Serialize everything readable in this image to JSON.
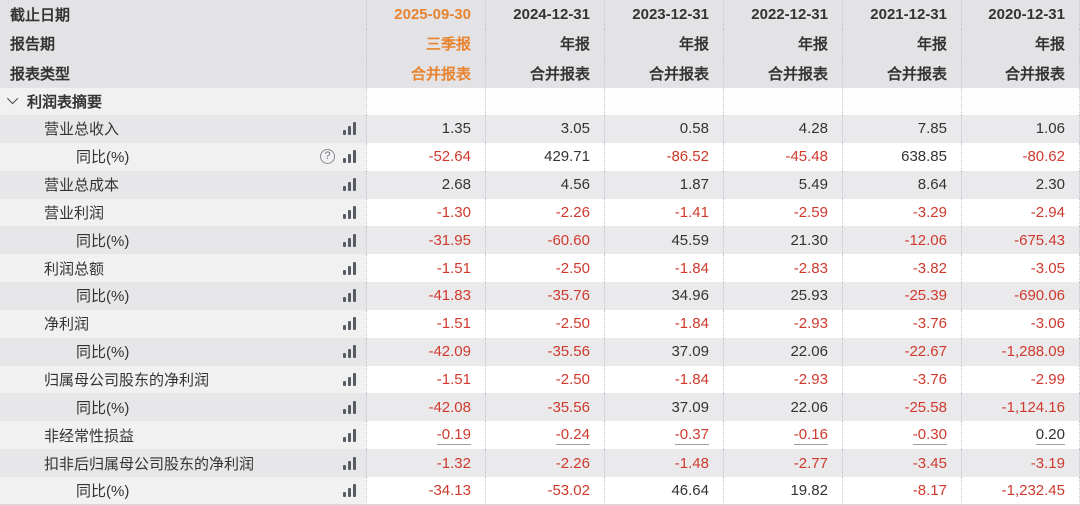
{
  "colors": {
    "accent_orange": "#e8832f",
    "negative_red": "#cf3a2d",
    "text_dark": "#333333",
    "header_bg": "#e3e3e5",
    "row_gray_bg": "#eaeaec",
    "label_light_bg": "#f1f1f2"
  },
  "icons": {
    "chevron_down": "chevron-down",
    "help": "?",
    "bar_chart": "mini-bar-chart"
  },
  "header": {
    "row_labels": [
      "截止日期",
      "报告期",
      "报表类型"
    ],
    "columns": [
      {
        "date": "2025-09-30",
        "period": "三季报",
        "report_type": "合并报表",
        "selected": true
      },
      {
        "date": "2024-12-31",
        "period": "年报",
        "report_type": "合并报表",
        "selected": false
      },
      {
        "date": "2023-12-31",
        "period": "年报",
        "report_type": "合并报表",
        "selected": false
      },
      {
        "date": "2022-12-31",
        "period": "年报",
        "report_type": "合并报表",
        "selected": false
      },
      {
        "date": "2021-12-31",
        "period": "年报",
        "report_type": "合并报表",
        "selected": false
      },
      {
        "date": "2020-12-31",
        "period": "年报",
        "report_type": "合并报表",
        "selected": false
      }
    ]
  },
  "section": {
    "title": "利润表摘要",
    "expanded": true
  },
  "rows": [
    {
      "label": "营业总收入",
      "indent": 1,
      "help": false,
      "underline": false,
      "values": [
        "1.35",
        "3.05",
        "0.58",
        "4.28",
        "7.85",
        "1.06"
      ]
    },
    {
      "label": "同比(%)",
      "indent": 2,
      "help": true,
      "underline": false,
      "values": [
        "-52.64",
        "429.71",
        "-86.52",
        "-45.48",
        "638.85",
        "-80.62"
      ]
    },
    {
      "label": "营业总成本",
      "indent": 1,
      "help": false,
      "underline": false,
      "values": [
        "2.68",
        "4.56",
        "1.87",
        "5.49",
        "8.64",
        "2.30"
      ]
    },
    {
      "label": "营业利润",
      "indent": 1,
      "help": false,
      "underline": false,
      "values": [
        "-1.30",
        "-2.26",
        "-1.41",
        "-2.59",
        "-3.29",
        "-2.94"
      ]
    },
    {
      "label": "同比(%)",
      "indent": 2,
      "help": false,
      "underline": false,
      "values": [
        "-31.95",
        "-60.60",
        "45.59",
        "21.30",
        "-12.06",
        "-675.43"
      ]
    },
    {
      "label": "利润总额",
      "indent": 1,
      "help": false,
      "underline": false,
      "values": [
        "-1.51",
        "-2.50",
        "-1.84",
        "-2.83",
        "-3.82",
        "-3.05"
      ]
    },
    {
      "label": "同比(%)",
      "indent": 2,
      "help": false,
      "underline": false,
      "values": [
        "-41.83",
        "-35.76",
        "34.96",
        "25.93",
        "-25.39",
        "-690.06"
      ]
    },
    {
      "label": "净利润",
      "indent": 1,
      "help": false,
      "underline": false,
      "values": [
        "-1.51",
        "-2.50",
        "-1.84",
        "-2.93",
        "-3.76",
        "-3.06"
      ]
    },
    {
      "label": "同比(%)",
      "indent": 2,
      "help": false,
      "underline": false,
      "values": [
        "-42.09",
        "-35.56",
        "37.09",
        "22.06",
        "-22.67",
        "-1,288.09"
      ]
    },
    {
      "label": "归属母公司股东的净利润",
      "indent": 1,
      "help": false,
      "underline": false,
      "values": [
        "-1.51",
        "-2.50",
        "-1.84",
        "-2.93",
        "-3.76",
        "-2.99"
      ]
    },
    {
      "label": "同比(%)",
      "indent": 2,
      "help": false,
      "underline": false,
      "values": [
        "-42.08",
        "-35.56",
        "37.09",
        "22.06",
        "-25.58",
        "-1,124.16"
      ]
    },
    {
      "label": "非经常性损益",
      "indent": 1,
      "help": false,
      "underline": true,
      "values": [
        "-0.19",
        "-0.24",
        "-0.37",
        "-0.16",
        "-0.30",
        "0.20"
      ]
    },
    {
      "label": "扣非后归属母公司股东的净利润",
      "indent": 1,
      "help": false,
      "underline": false,
      "values": [
        "-1.32",
        "-2.26",
        "-1.48",
        "-2.77",
        "-3.45",
        "-3.19"
      ]
    },
    {
      "label": "同比(%)",
      "indent": 2,
      "help": false,
      "underline": false,
      "values": [
        "-34.13",
        "-53.02",
        "46.64",
        "19.82",
        "-8.17",
        "-1,232.45"
      ]
    }
  ]
}
